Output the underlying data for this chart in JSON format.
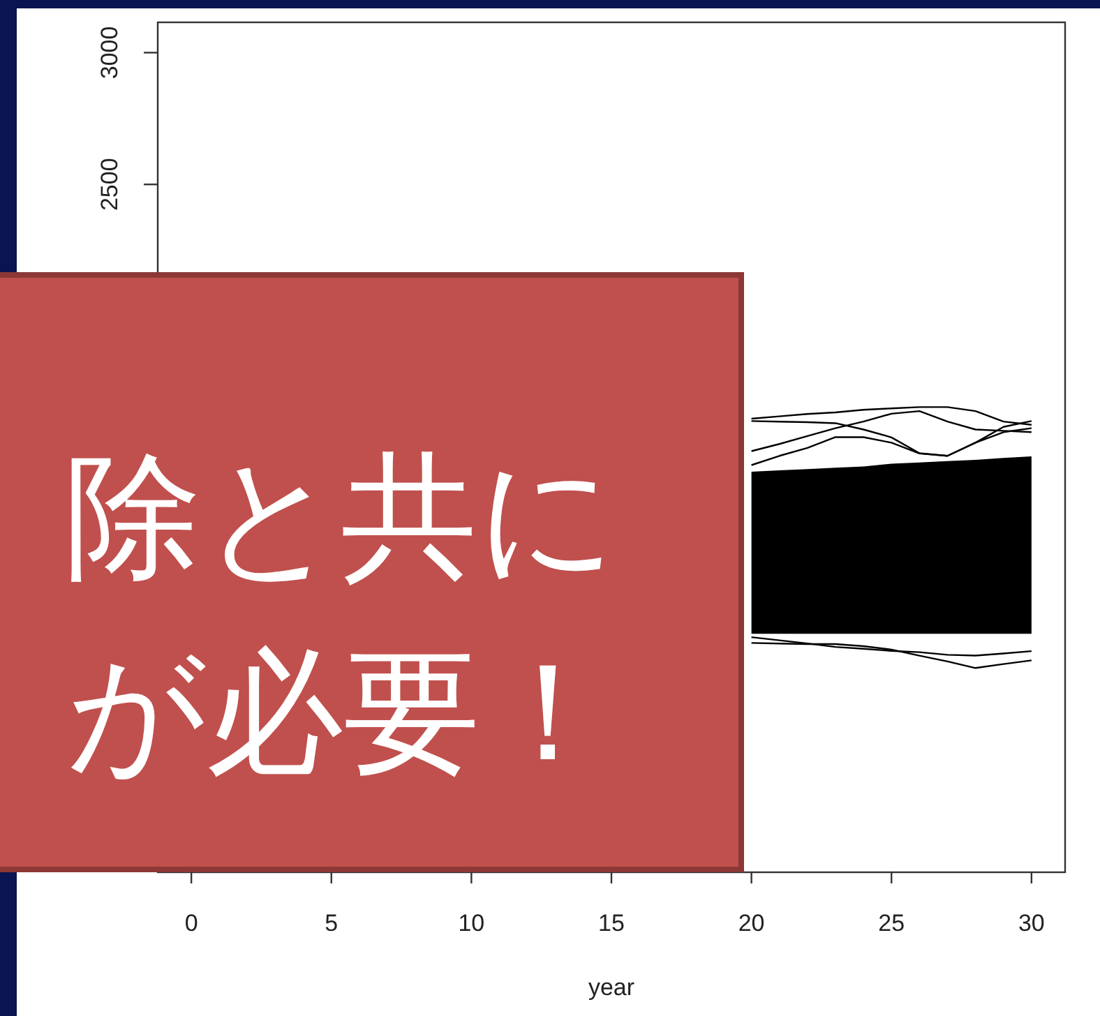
{
  "chart_data": {
    "type": "line",
    "xlabel": "year",
    "xlim": [
      -1.2,
      31.2
    ],
    "xticks": [
      0,
      5,
      10,
      15,
      20,
      25,
      30
    ],
    "ylim": [
      -110,
      3115
    ],
    "yticks": [
      2500,
      3000
    ],
    "grid": false,
    "marker": "none",
    "line_style": "solid",
    "x": [
      20,
      21,
      22,
      23,
      24,
      25,
      26,
      27,
      28,
      29,
      30
    ],
    "series": [
      {
        "color": "#000000",
        "values": [
          null,
          null,
          null,
          null,
          null,
          null,
          null,
          null,
          null,
          null,
          null
        ],
        "lower": [
          795,
          795,
          795,
          795,
          795,
          795,
          795,
          795,
          795,
          795,
          795
        ],
        "upper": [
          1410,
          1415,
          1420,
          1425,
          1430,
          1440,
          1445,
          1450,
          1455,
          1462,
          1468
        ]
      },
      {
        "color": "#000000",
        "values": [
          1611,
          1620,
          1629,
          1635,
          1645,
          1650,
          1655,
          1655,
          1640,
          1600,
          1588
        ]
      },
      {
        "color": "#000000",
        "values": [
          1488,
          1515,
          1545,
          1575,
          1600,
          1630,
          1640,
          1600,
          1570,
          1565,
          1560
        ]
      },
      {
        "color": "#000000",
        "values": [
          1602,
          1600,
          1598,
          1594,
          1570,
          1540,
          1480,
          1470,
          1520,
          1560,
          1575
        ]
      },
      {
        "color": "#000000",
        "values": [
          1435,
          1470,
          1500,
          1541,
          1541,
          1520,
          1479,
          1470,
          1520,
          1580,
          1602
        ]
      },
      {
        "color": "#000000",
        "values": [
          760,
          758,
          756,
          756,
          748,
          735,
          712,
          690,
          665,
          680,
          694
        ]
      },
      {
        "color": "#000000",
        "values": [
          782,
          770,
          758,
          745,
          738,
          730,
          725,
          715,
          712,
          720,
          729
        ]
      }
    ],
    "annotations": [
      "除と共に",
      "が必要！"
    ]
  }
}
